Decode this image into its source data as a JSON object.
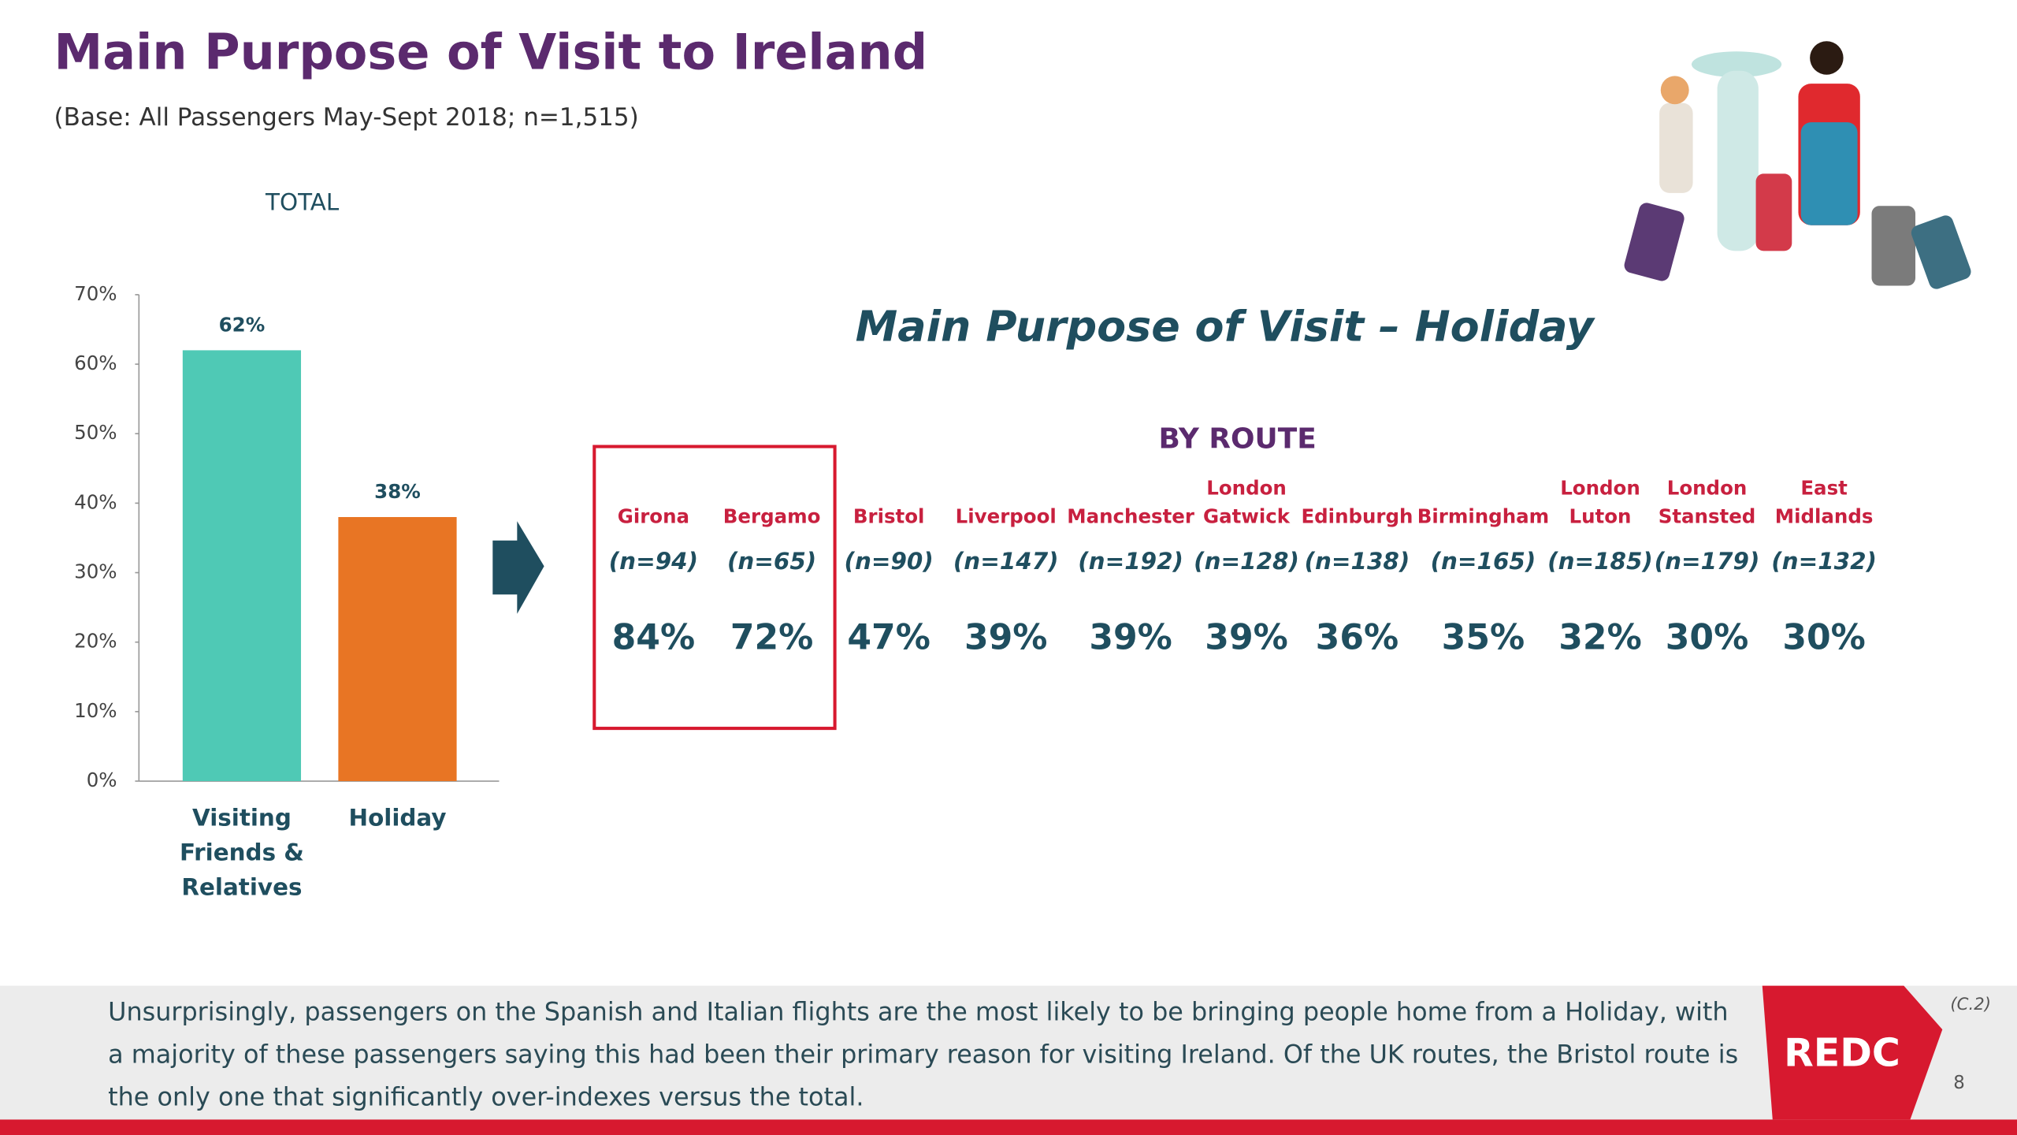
{
  "header": {
    "title": "Main Purpose of Visit to Ireland",
    "subtitle": "(Base: All Passengers May-Sept 2018; n=1,515)"
  },
  "chart_data": {
    "type": "bar",
    "title": "TOTAL",
    "categories": [
      "Visiting Friends & Relatives",
      "Holiday"
    ],
    "values": [
      62,
      38
    ],
    "value_labels": [
      "62%",
      "38%"
    ],
    "colors": [
      "#4fc9b5",
      "#e87524"
    ],
    "ylim": [
      0,
      70
    ],
    "yticks": [
      {
        "value": 0,
        "label": "0%"
      },
      {
        "value": 10,
        "label": "10%"
      },
      {
        "value": 20,
        "label": "20%"
      },
      {
        "value": 30,
        "label": "30%"
      },
      {
        "value": 40,
        "label": "40%"
      },
      {
        "value": 50,
        "label": "50%"
      },
      {
        "value": 60,
        "label": "60%"
      },
      {
        "value": 70,
        "label": "70%"
      }
    ],
    "grid": false
  },
  "routes": {
    "title": "Main Purpose of Visit – Holiday",
    "subtitle": "BY ROUTE",
    "names": [
      [
        "Girona"
      ],
      [
        "Bergamo"
      ],
      [
        "Bristol"
      ],
      [
        "Liverpool"
      ],
      [
        "Manchester"
      ],
      [
        "London",
        "Gatwick"
      ],
      [
        "Edinburgh"
      ],
      [
        "Birmingham"
      ],
      [
        "London",
        "Luton"
      ],
      [
        "London",
        "Stansted"
      ],
      [
        "East",
        "Midlands"
      ]
    ],
    "n_labels": [
      "(n=94)",
      "(n=65)",
      "(n=90)",
      "(n=147)",
      "(n=192)",
      "(n=128)",
      "(n=138)",
      "(n=165)",
      "(n=185)",
      "(n=179)",
      "(n=132)"
    ],
    "values": [
      84,
      72,
      47,
      39,
      39,
      39,
      36,
      35,
      32,
      30,
      30
    ],
    "value_labels": [
      "84%",
      "72%",
      "47%",
      "39%",
      "39%",
      "39%",
      "36%",
      "35%",
      "32%",
      "30%",
      "30%"
    ]
  },
  "footer": {
    "text": "Unsurprisingly, passengers on the Spanish and Italian flights are the most likely to be bringing people home from a Holiday, with a majority of these passengers saying this had been their primary reason for visiting Ireland. Of the UK routes, the Bristol route is the only one that significantly over-indexes versus the total.",
    "logo": "REDC",
    "code": "(C.2)",
    "page": "8"
  }
}
